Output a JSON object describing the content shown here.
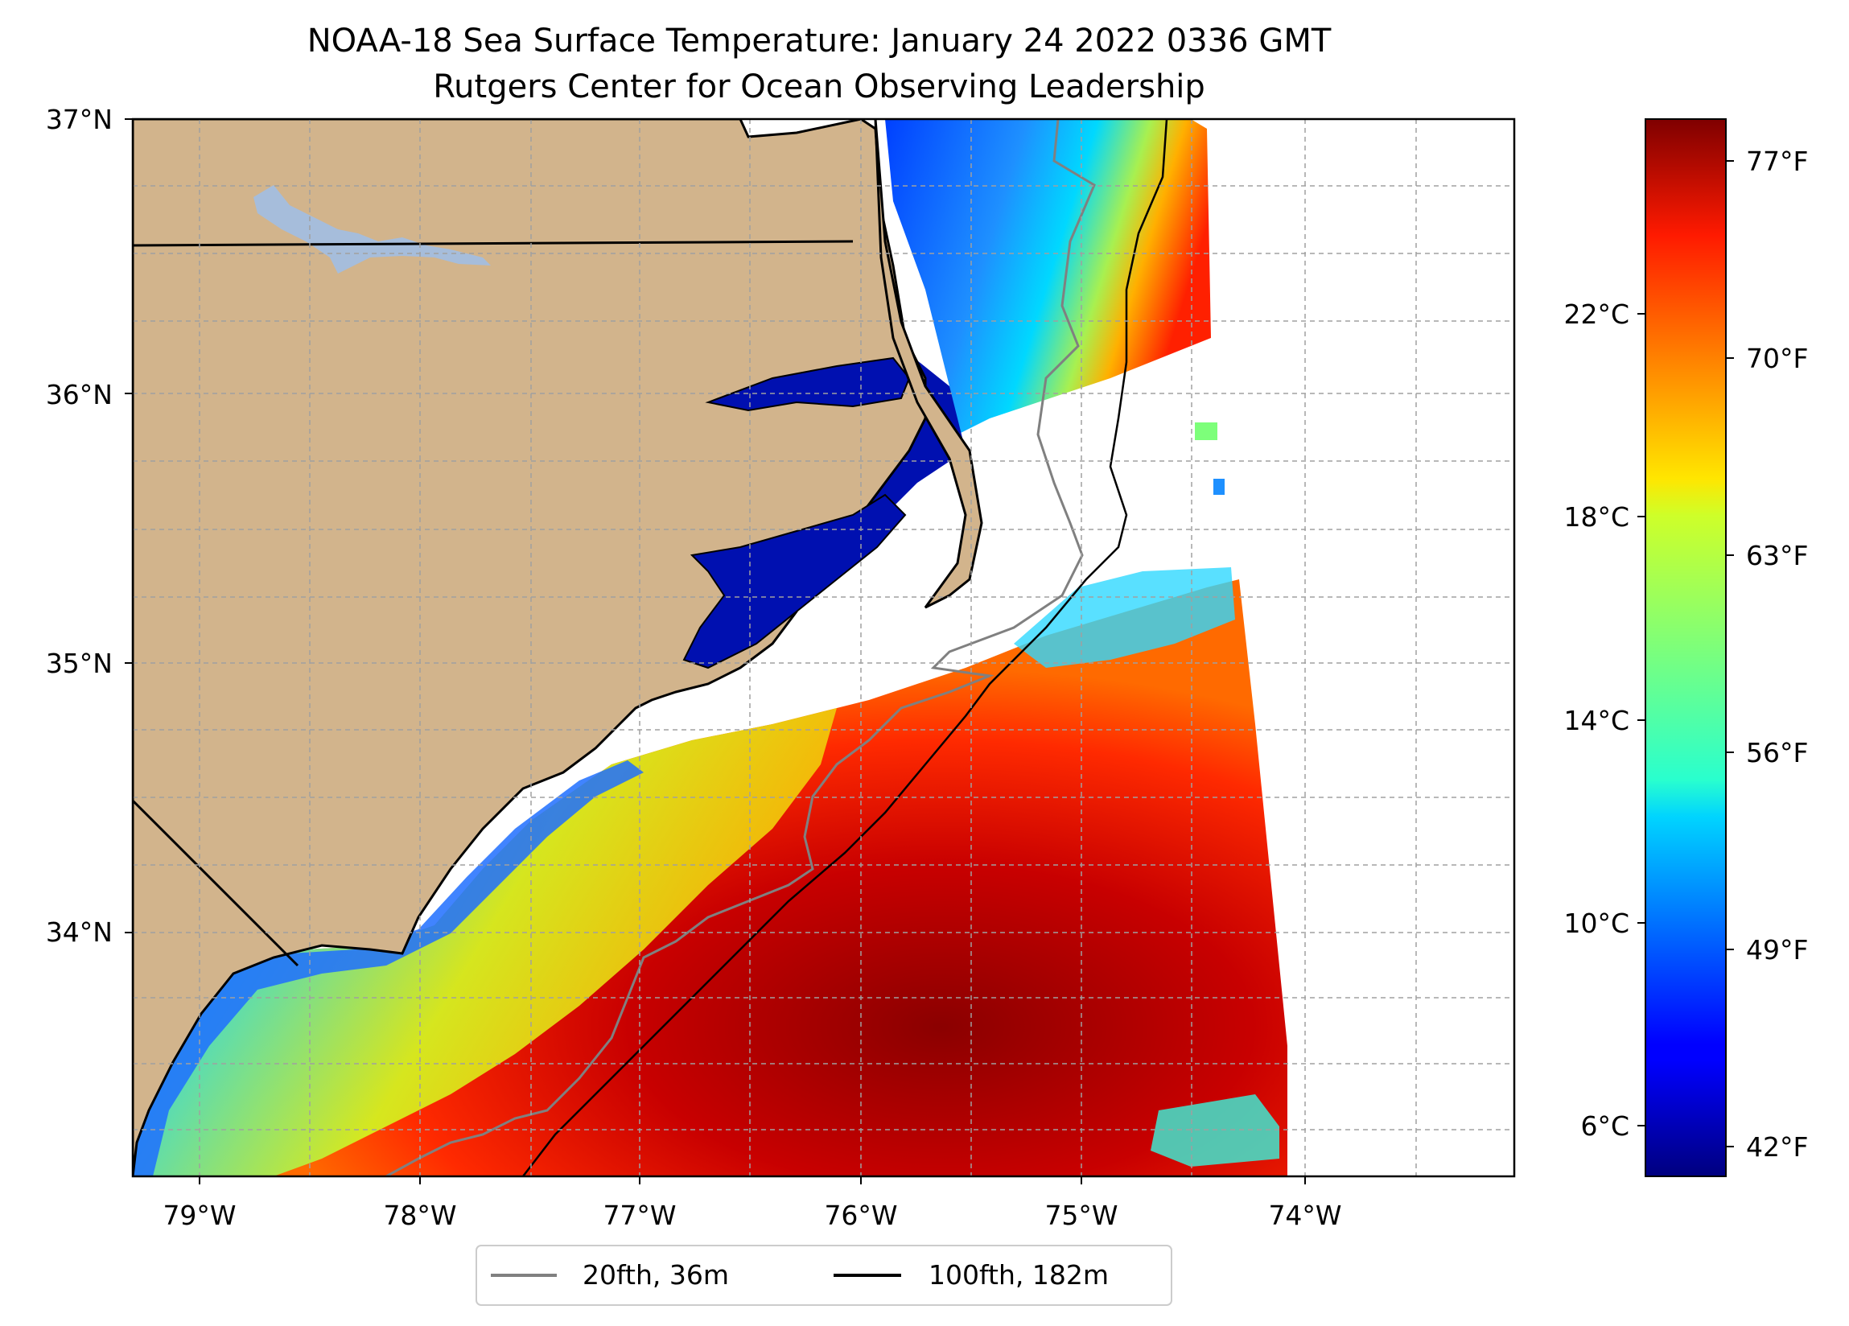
{
  "title": {
    "line1": "NOAA-18 Sea Surface Temperature: January 24 2022 0336 GMT",
    "line2": "Rutgers Center for Ocean Observing Leadership"
  },
  "map": {
    "lat_ticks": [
      "37°N",
      "36°N",
      "35°N",
      "34°N"
    ],
    "lon_ticks": [
      "79°W",
      "78°W",
      "77°W",
      "76°W",
      "75°W",
      "74°W"
    ],
    "extent": {
      "lon": [
        -79.3,
        -73.1
      ],
      "lat": [
        33.1,
        37.0
      ]
    },
    "gridlines": true,
    "land_color": "#d2b48c",
    "no_data_color": "#ffffff",
    "lake_color": "#a6bddb"
  },
  "legend": {
    "placement": "bottom-center",
    "items": [
      {
        "label": "20fth, 36m",
        "color": "#808080"
      },
      {
        "label": "100fth, 182m",
        "color": "#000000"
      }
    ]
  },
  "colorbar": {
    "colormap": "jet",
    "celsius_ticks": [
      "22°C",
      "18°C",
      "14°C",
      "10°C",
      "6°C"
    ],
    "fahrenheit_ticks": [
      "77°F",
      "70°F",
      "63°F",
      "56°F",
      "49°F",
      "42°F"
    ],
    "range_c": [
      5.2,
      25.8
    ]
  }
}
